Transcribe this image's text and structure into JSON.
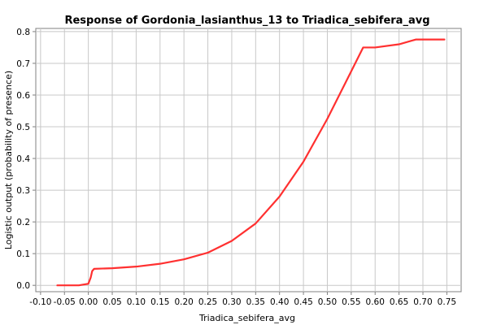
{
  "chart_data": {
    "type": "line",
    "title": "Response of Gordonia_lasianthus_13 to Triadica_sebifera_avg",
    "xlabel": "Triadica_sebifera_avg",
    "ylabel": "Logistic output (probability of presence)",
    "xlim": [
      -0.11,
      0.78
    ],
    "ylim": [
      -0.02,
      0.81
    ],
    "x_ticks": [
      -0.1,
      -0.05,
      0.0,
      0.05,
      0.1,
      0.15,
      0.2,
      0.25,
      0.3,
      0.35,
      0.4,
      0.45,
      0.5,
      0.55,
      0.6,
      0.65,
      0.7,
      0.75
    ],
    "x_tick_labels": [
      "-0.10",
      "-0.05",
      "0.00",
      "0.05",
      "0.10",
      "0.15",
      "0.20",
      "0.25",
      "0.30",
      "0.35",
      "0.40",
      "0.45",
      "0.50",
      "0.55",
      "0.60",
      "0.65",
      "0.70",
      "0.75"
    ],
    "y_ticks": [
      0.0,
      0.1,
      0.2,
      0.3,
      0.4,
      0.5,
      0.6,
      0.7,
      0.8
    ],
    "y_tick_labels": [
      "0.0",
      "0.1",
      "0.2",
      "0.3",
      "0.4",
      "0.5",
      "0.6",
      "0.7",
      "0.8"
    ],
    "grid": true,
    "legend": "none",
    "series": [
      {
        "color": "#ff3030",
        "x": [
          -0.065,
          -0.02,
          0.0,
          0.005,
          0.008,
          0.012,
          0.05,
          0.1,
          0.15,
          0.2,
          0.25,
          0.3,
          0.35,
          0.4,
          0.45,
          0.5,
          0.55,
          0.575,
          0.6,
          0.65,
          0.685,
          0.745
        ],
        "y": [
          0.0,
          0.0,
          0.005,
          0.025,
          0.045,
          0.052,
          0.054,
          0.059,
          0.068,
          0.082,
          0.103,
          0.14,
          0.195,
          0.28,
          0.39,
          0.525,
          0.675,
          0.75,
          0.75,
          0.76,
          0.775,
          0.775
        ]
      }
    ]
  }
}
